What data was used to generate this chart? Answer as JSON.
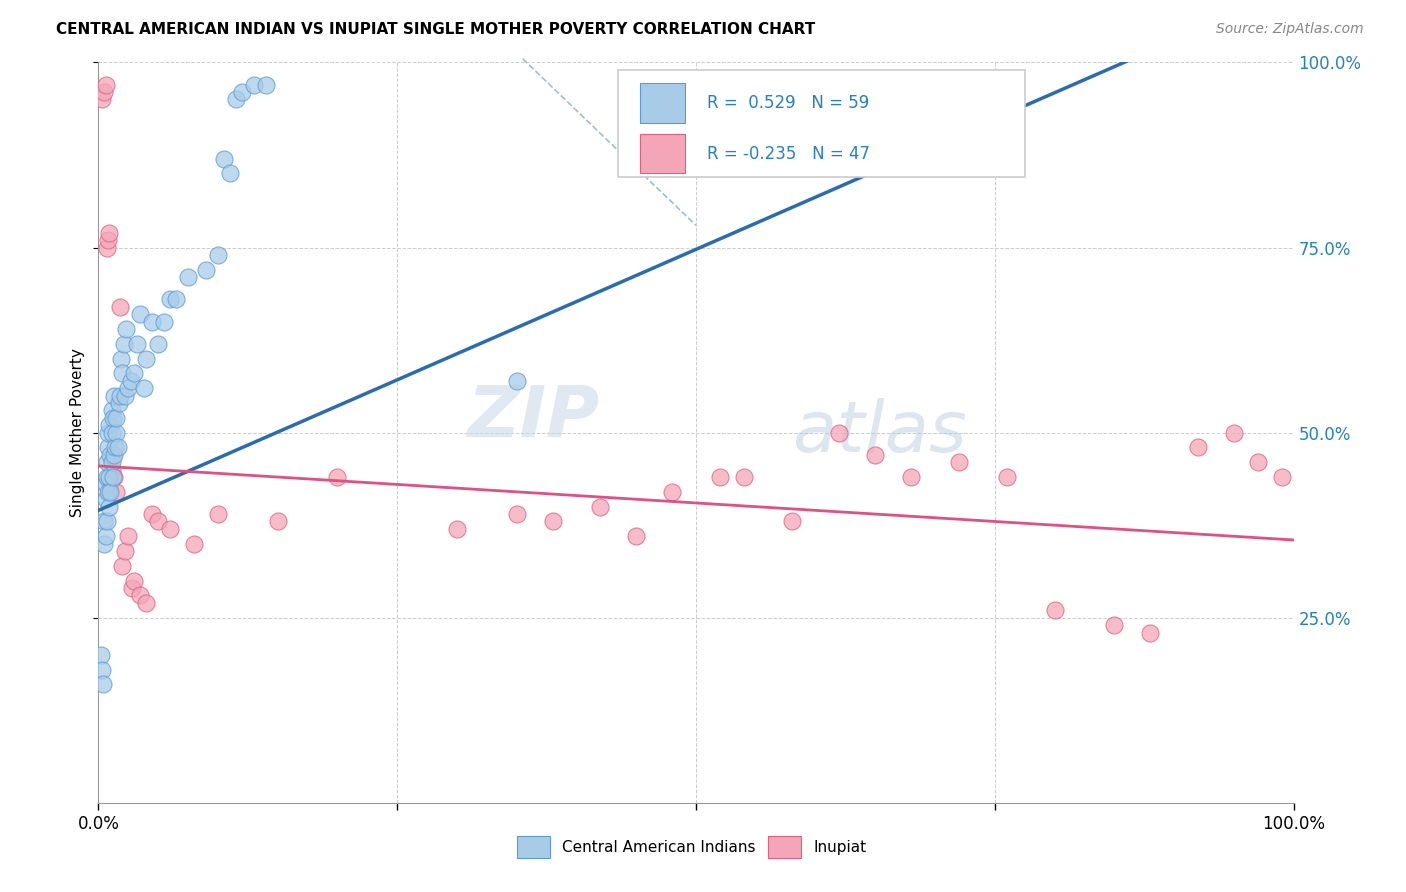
{
  "title": "CENTRAL AMERICAN INDIAN VS INUPIAT SINGLE MOTHER POVERTY CORRELATION CHART",
  "source": "Source: ZipAtlas.com",
  "ylabel": "Single Mother Poverty",
  "legend_label1": "Central American Indians",
  "legend_label2": "Inupiat",
  "R1": 0.529,
  "N1": 59,
  "R2": -0.235,
  "N2": 47,
  "color_blue_fill": "#a8cce8",
  "color_blue_edge": "#5b9bd5",
  "color_pink_fill": "#f4a6b8",
  "color_pink_edge": "#e06080",
  "color_blue_line": "#2b6cb0",
  "color_pink_line": "#e05080",
  "color_dashed": "#a0bcd8",
  "watermark_zip": "ZIP",
  "watermark_atlas": "atlas",
  "blue_x": [
    0.002,
    0.003,
    0.004,
    0.005,
    0.005,
    0.006,
    0.006,
    0.006,
    0.007,
    0.007,
    0.007,
    0.008,
    0.008,
    0.008,
    0.009,
    0.009,
    0.009,
    0.01,
    0.01,
    0.011,
    0.011,
    0.011,
    0.012,
    0.012,
    0.013,
    0.013,
    0.014,
    0.015,
    0.015,
    0.016,
    0.017,
    0.018,
    0.019,
    0.02,
    0.021,
    0.022,
    0.023,
    0.025,
    0.027,
    0.03,
    0.032,
    0.035,
    0.038,
    0.04,
    0.045,
    0.05,
    0.055,
    0.06,
    0.065,
    0.075,
    0.09,
    0.1,
    0.105,
    0.11,
    0.115,
    0.12,
    0.13,
    0.14,
    0.35
  ],
  "blue_y": [
    0.2,
    0.18,
    0.16,
    0.38,
    0.35,
    0.36,
    0.41,
    0.43,
    0.38,
    0.44,
    0.46,
    0.42,
    0.48,
    0.5,
    0.4,
    0.44,
    0.51,
    0.42,
    0.47,
    0.46,
    0.5,
    0.53,
    0.44,
    0.52,
    0.47,
    0.55,
    0.48,
    0.5,
    0.52,
    0.48,
    0.54,
    0.55,
    0.6,
    0.58,
    0.62,
    0.55,
    0.64,
    0.56,
    0.57,
    0.58,
    0.62,
    0.66,
    0.56,
    0.6,
    0.65,
    0.62,
    0.65,
    0.68,
    0.68,
    0.71,
    0.72,
    0.74,
    0.87,
    0.85,
    0.95,
    0.96,
    0.97,
    0.97,
    0.57
  ],
  "pink_x": [
    0.003,
    0.005,
    0.006,
    0.007,
    0.008,
    0.009,
    0.01,
    0.011,
    0.012,
    0.013,
    0.015,
    0.018,
    0.02,
    0.022,
    0.025,
    0.028,
    0.03,
    0.035,
    0.04,
    0.045,
    0.05,
    0.06,
    0.08,
    0.1,
    0.15,
    0.2,
    0.3,
    0.35,
    0.38,
    0.42,
    0.45,
    0.48,
    0.52,
    0.54,
    0.58,
    0.62,
    0.65,
    0.68,
    0.72,
    0.76,
    0.8,
    0.85,
    0.88,
    0.92,
    0.95,
    0.97,
    0.99
  ],
  "pink_y": [
    0.95,
    0.96,
    0.97,
    0.75,
    0.76,
    0.77,
    0.43,
    0.45,
    0.47,
    0.44,
    0.42,
    0.67,
    0.32,
    0.34,
    0.36,
    0.29,
    0.3,
    0.28,
    0.27,
    0.39,
    0.38,
    0.37,
    0.35,
    0.39,
    0.38,
    0.44,
    0.37,
    0.39,
    0.38,
    0.4,
    0.36,
    0.42,
    0.44,
    0.44,
    0.38,
    0.5,
    0.47,
    0.44,
    0.46,
    0.44,
    0.26,
    0.24,
    0.23,
    0.48,
    0.5,
    0.46,
    0.44
  ],
  "blue_line_x": [
    0.0,
    1.0
  ],
  "blue_line_y": [
    0.395,
    1.1
  ],
  "pink_line_x": [
    0.0,
    1.0
  ],
  "pink_line_y": [
    0.455,
    0.355
  ],
  "dash_line_x": [
    0.355,
    0.5
  ],
  "dash_line_y": [
    1.005,
    0.78
  ],
  "xlim": [
    0.0,
    1.0
  ],
  "ylim": [
    0.0,
    1.0
  ],
  "xticks": [
    0.0,
    0.25,
    0.5,
    0.75,
    1.0
  ],
  "yticks": [
    0.25,
    0.5,
    0.75,
    1.0
  ],
  "right_ytick_labels": [
    "25.0%",
    "50.0%",
    "75.0%",
    "100.0%"
  ]
}
